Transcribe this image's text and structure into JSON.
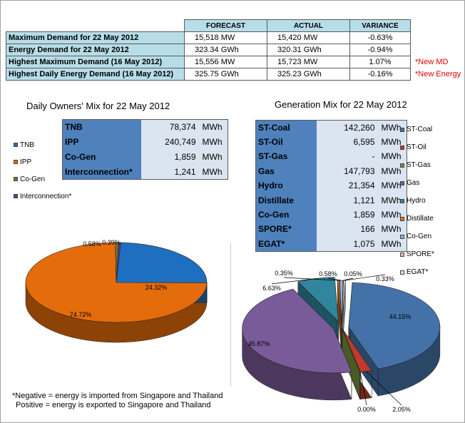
{
  "summary": {
    "headers": [
      "FORECAST",
      "ACTUAL",
      "VARIANCE"
    ],
    "rows": [
      {
        "label": "Maximum Demand for 22 May 2012",
        "forecast": "15,518  MW",
        "actual": "15,420  MW",
        "variance": "-0.63%",
        "note": ""
      },
      {
        "label": "Energy Demand for 22 May 2012",
        "forecast": "323.34  GWh",
        "actual": "320.31  GWh",
        "variance": "-0.94%",
        "note": ""
      },
      {
        "label": "Highest Maximum Demand (16 May 2012)",
        "forecast": "15,556  MW",
        "actual": "15,723  MW",
        "variance": "1.07%",
        "note": "*New MD"
      },
      {
        "label": "Highest Daily Energy Demand (16 May 2012)",
        "forecast": "325.75  GWh",
        "actual": "325.23  GWh",
        "variance": "-0.16%",
        "note": "*New Energy"
      }
    ]
  },
  "owners": {
    "title": "Daily Owners' Mix for 22 May 2012",
    "unit": "MWh",
    "rows": [
      {
        "name": "TNB",
        "value": "78,374"
      },
      {
        "name": "IPP",
        "value": "240,749"
      },
      {
        "name": "Co-Gen",
        "value": "1,859"
      },
      {
        "name": "Interconnection*",
        "value": "1,241"
      }
    ],
    "legend": [
      "TNB",
      "IPP",
      "Co-Gen",
      "Interconnection*"
    ]
  },
  "generation": {
    "title": "Generation Mix for 22 May 2012",
    "unit": "MWh",
    "rows": [
      {
        "name": "ST-Coal",
        "value": "142,260"
      },
      {
        "name": "ST-Oil",
        "value": "6,595"
      },
      {
        "name": "ST-Gas",
        "value": "-"
      },
      {
        "name": "Gas",
        "value": "147,793"
      },
      {
        "name": "Hydro",
        "value": "21,354"
      },
      {
        "name": "Distillate",
        "value": "1,121"
      },
      {
        "name": "Co-Gen",
        "value": "1,859"
      },
      {
        "name": "SPORE*",
        "value": "166"
      },
      {
        "name": "EGAT*",
        "value": "1,075"
      }
    ],
    "legend": [
      "ST-Coal",
      "ST-Oil",
      "ST-Gas",
      "Gas",
      "Hydro",
      "Distillate",
      "Co-Gen",
      "SPORE*",
      "EGAT*"
    ]
  },
  "footnote": {
    "line1": "*Negative = energy is imported from Singapore and Thailand",
    "line2": "Positive = energy is exported to Singapore and Thailand"
  },
  "chart_data": [
    {
      "type": "pie",
      "title": "Daily Owners' Mix for 22 May 2012",
      "categories": [
        "TNB",
        "IPP",
        "Co-Gen",
        "Interconnection*"
      ],
      "values": [
        24.32,
        74.72,
        0.58,
        0.39
      ],
      "labels": [
        "24.32%",
        "74.72%",
        "0.58%",
        "0.39%"
      ],
      "colors": [
        "#1f6fc0",
        "#e46c0a",
        "#6b7b2b",
        "#7030a0"
      ]
    },
    {
      "type": "pie",
      "title": "Generation Mix for 22 May 2012",
      "categories": [
        "ST-Coal",
        "ST-Oil",
        "ST-Gas",
        "Gas",
        "Hydro",
        "Distillate",
        "Co-Gen",
        "SPORE*",
        "EGAT*"
      ],
      "values": [
        44.15,
        2.05,
        0.0,
        45.87,
        6.63,
        0.35,
        0.58,
        0.05,
        0.33
      ],
      "labels": [
        "44.15%",
        "2.05%",
        "0.00%",
        "45.87%",
        "6.63%",
        "0.35%",
        "0.58%",
        "0.05%",
        "0.33%"
      ],
      "colors": [
        "#4472a8",
        "#c0392b",
        "#76923c",
        "#7a5b9a",
        "#31859c",
        "#e46c0a",
        "#8db3e2",
        "#e6b9b8",
        "#d9d9d9"
      ]
    }
  ]
}
